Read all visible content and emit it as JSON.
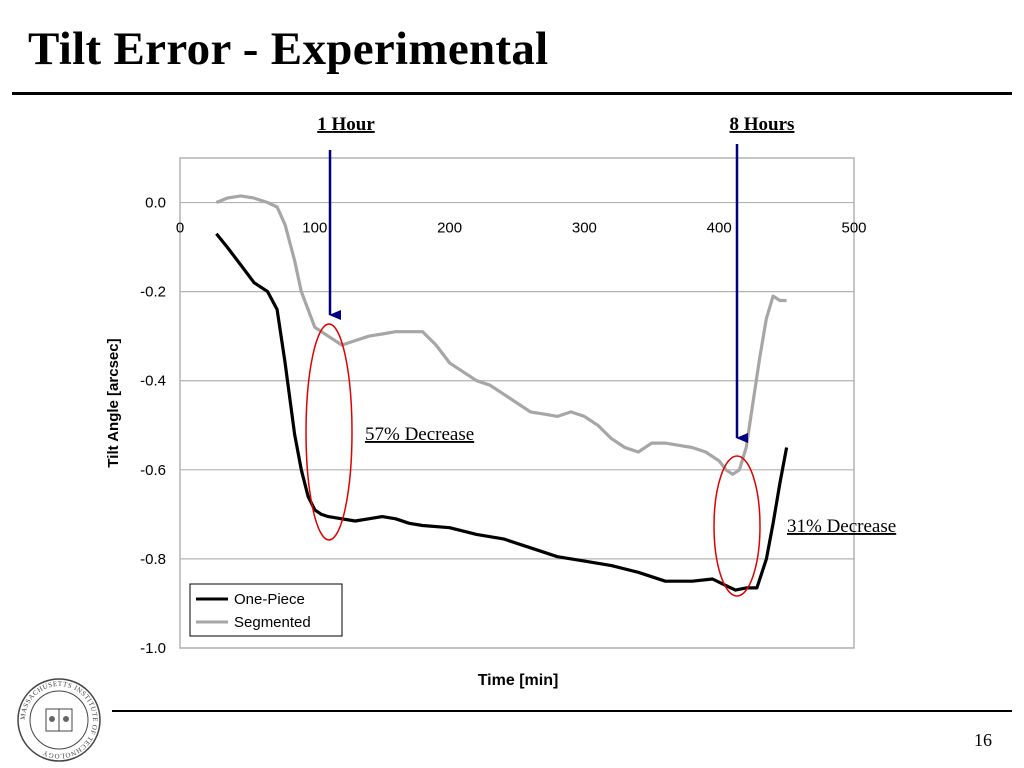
{
  "slide": {
    "title": "Tilt Error - Experimental",
    "page_number": "16"
  },
  "annotations": {
    "arrow_1_label": "1 Hour",
    "arrow_2_label": "8 Hours",
    "decrease_1": "57% Decrease",
    "decrease_2": "31% Decrease"
  },
  "logo": {
    "icon": "mit-seal-icon",
    "text": "MASSACHUSETTS INSTITUTE OF TECHNOLOGY"
  },
  "colors": {
    "one_piece": "#000000",
    "segmented": "#a6a6a6",
    "arrow": "#000080",
    "ellipse": "#e00000",
    "plot_bg": "#ffffff",
    "grid": "#b3b3b3"
  },
  "chart_data": {
    "type": "line",
    "title": "",
    "xlabel": "Time [min]",
    "ylabel": "Tilt Angle [arcsec]",
    "xlim": [
      0,
      500
    ],
    "ylim": [
      -1.0,
      0.1
    ],
    "x_ticks": [
      0,
      100,
      200,
      300,
      400,
      500
    ],
    "x_tick_labels": [
      "0",
      "100",
      "200",
      "300",
      "400",
      "500"
    ],
    "y_ticks": [
      0.0,
      -0.2,
      -0.4,
      -0.6,
      -0.8,
      -1.0
    ],
    "y_tick_labels": [
      "0.0",
      "-0.2",
      "-0.4",
      "-0.6",
      "-0.8",
      "-1.0"
    ],
    "grid": "horizontal",
    "legend_position": "bottom-left",
    "series": [
      {
        "name": "One-Piece",
        "x": [
          27,
          35,
          45,
          55,
          65,
          72,
          78,
          85,
          90,
          95,
          100,
          105,
          110,
          120,
          130,
          140,
          150,
          160,
          170,
          180,
          200,
          220,
          240,
          260,
          280,
          300,
          320,
          340,
          360,
          380,
          395,
          405,
          412,
          420,
          428,
          435,
          440,
          445,
          450
        ],
        "y": [
          -0.07,
          -0.1,
          -0.14,
          -0.18,
          -0.2,
          -0.24,
          -0.36,
          -0.52,
          -0.6,
          -0.66,
          -0.69,
          -0.7,
          -0.705,
          -0.71,
          -0.715,
          -0.71,
          -0.705,
          -0.71,
          -0.72,
          -0.725,
          -0.73,
          -0.745,
          -0.755,
          -0.775,
          -0.795,
          -0.805,
          -0.815,
          -0.83,
          -0.85,
          -0.85,
          -0.845,
          -0.86,
          -0.87,
          -0.865,
          -0.865,
          -0.8,
          -0.72,
          -0.63,
          -0.55
        ]
      },
      {
        "name": "Segmented",
        "x": [
          27,
          35,
          45,
          55,
          65,
          72,
          78,
          85,
          90,
          95,
          100,
          105,
          110,
          115,
          120,
          130,
          140,
          150,
          160,
          170,
          180,
          190,
          200,
          210,
          220,
          230,
          240,
          250,
          260,
          270,
          280,
          290,
          300,
          310,
          320,
          330,
          340,
          350,
          360,
          370,
          380,
          390,
          400,
          405,
          410,
          415,
          420,
          425,
          430,
          435,
          440,
          445,
          450
        ],
        "y": [
          0.0,
          0.01,
          0.015,
          0.01,
          0.0,
          -0.01,
          -0.05,
          -0.13,
          -0.2,
          -0.24,
          -0.28,
          -0.29,
          -0.3,
          -0.31,
          -0.32,
          -0.31,
          -0.3,
          -0.295,
          -0.29,
          -0.29,
          -0.29,
          -0.32,
          -0.36,
          -0.38,
          -0.4,
          -0.41,
          -0.43,
          -0.45,
          -0.47,
          -0.475,
          -0.48,
          -0.47,
          -0.48,
          -0.5,
          -0.53,
          -0.55,
          -0.56,
          -0.54,
          -0.54,
          -0.545,
          -0.55,
          -0.56,
          -0.58,
          -0.6,
          -0.61,
          -0.6,
          -0.55,
          -0.45,
          -0.35,
          -0.26,
          -0.21,
          -0.22,
          -0.22
        ]
      }
    ]
  }
}
